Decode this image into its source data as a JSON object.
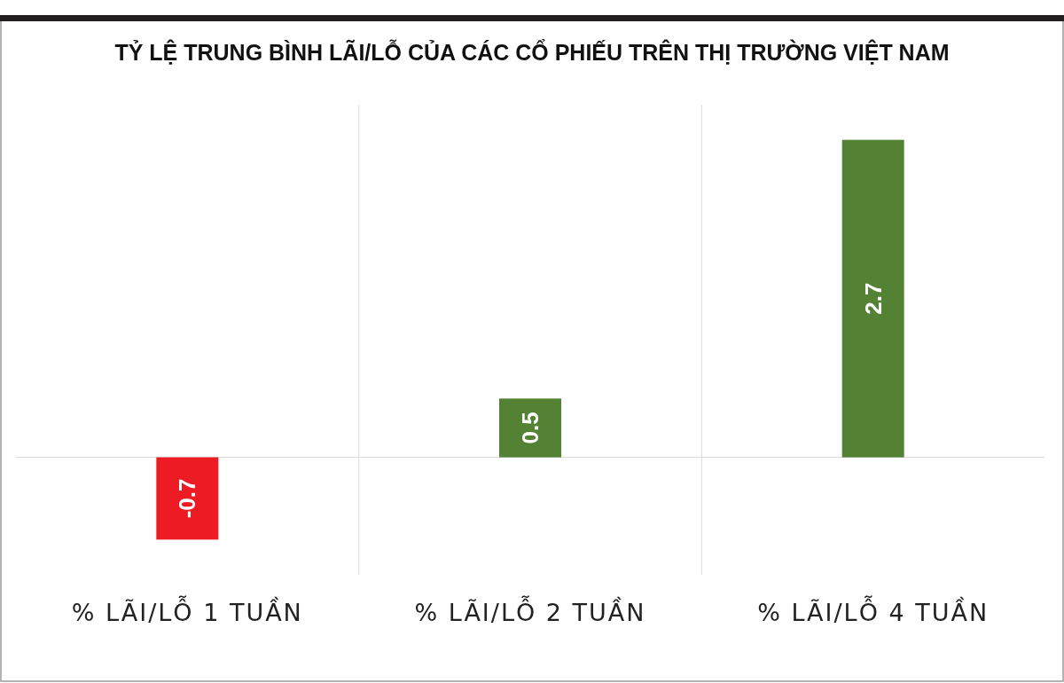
{
  "chart_data": {
    "type": "bar",
    "title": "TỶ LỆ TRUNG BÌNH LÃI/LỖ CỦA CÁC CỔ PHIẾU TRÊN THỊ TRƯỜNG VIỆT NAM",
    "categories": [
      "% LÃI/LỖ 1 TUẦN",
      "% LÃI/LỖ 2 TUẦN",
      "% LÃI/LỖ 4 TUẦN"
    ],
    "values": [
      -0.7,
      0.5,
      2.7
    ],
    "colors": [
      "#ed1c24",
      "#548235",
      "#548235"
    ],
    "data_labels": true,
    "grid": "x"
  }
}
